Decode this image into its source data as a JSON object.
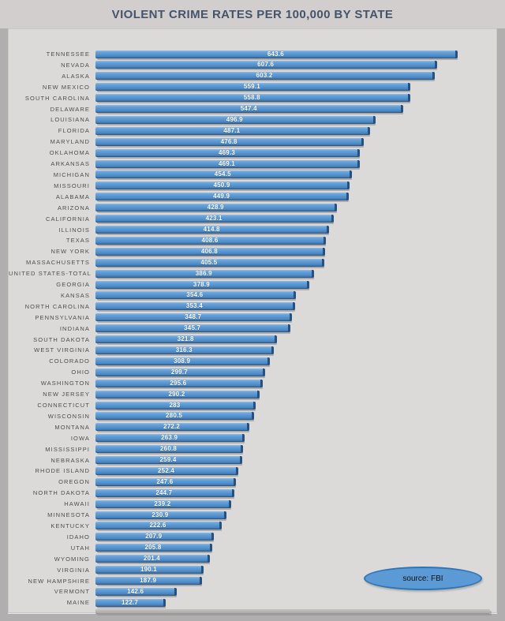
{
  "title": "VIOLENT CRIME RATES PER 100,000 BY STATE",
  "source_label": "source: FBI",
  "colors": {
    "page_background": "#b0aeae",
    "title_band": "#d1cecd",
    "panel_background": "#dcdad9",
    "bar_fill": "#5b9ad5",
    "bar_edge_dark": "#27527e",
    "badge_border": "#2e75b6",
    "title_text": "#44546a",
    "label_text": "#4d4d4d",
    "value_text": "#ffffff"
  },
  "chart_data": {
    "type": "bar",
    "orientation": "horizontal",
    "title": "VIOLENT CRIME RATES PER 100,000 BY STATE",
    "xlabel": "",
    "ylabel": "",
    "xlim": [
      0,
      713
    ],
    "grid": false,
    "legend": false,
    "sort": "descending",
    "value_labels": "centered-on-bar",
    "source": "source: FBI",
    "categories": [
      "TENNESSEE",
      "NEVADA",
      "ALASKA",
      "NEW MEXICO",
      "SOUTH CAROLINA",
      "DELAWARE",
      "LOUISIANA",
      "FLORIDA",
      "MARYLAND",
      "OKLAHOMA",
      "ARKANSAS",
      "MICHIGAN",
      "MISSOURI",
      "ALABAMA",
      "ARIZONA",
      "CALIFORNIA",
      "ILLINOIS",
      "TEXAS",
      "NEW YORK",
      "MASSACHUSETTS",
      "UNITED STATES-TOTAL",
      "GEORGIA",
      "KANSAS",
      "NORTH CAROLINA",
      "PENNSYLVANIA",
      "INDIANA",
      "SOUTH DAKOTA",
      "WEST VIRGINIA",
      "COLORADO",
      "OHIO",
      "WASHINGTON",
      "NEW JERSEY",
      "CONNECTICUT",
      "WISCONSIN",
      "MONTANA",
      "IOWA",
      "MISSISSIPPI",
      "NEBRASKA",
      "RHODE ISLAND",
      "OREGON",
      "NORTH DAKOTA",
      "HAWAII",
      "MINNESOTA",
      "KENTUCKY",
      "IDAHO",
      "UTAH",
      "WYOMING",
      "VIRGINIA",
      "NEW HAMPSHIRE",
      "VERMONT",
      "MAINE"
    ],
    "values": [
      643.6,
      607.6,
      603.2,
      559.1,
      558.8,
      547.4,
      496.9,
      487.1,
      476.8,
      469.3,
      469.1,
      454.5,
      450.9,
      449.9,
      428.9,
      423.1,
      414.8,
      408.6,
      406.8,
      405.5,
      386.9,
      378.9,
      354.6,
      353.4,
      348.7,
      345.7,
      321.8,
      316.3,
      308.9,
      299.7,
      295.6,
      290.2,
      283,
      280.5,
      272.2,
      263.9,
      260.8,
      259.4,
      252.4,
      247.6,
      244.7,
      239.2,
      230.9,
      222.6,
      207.9,
      205.8,
      201.4,
      190.1,
      187.9,
      142.6,
      122.7
    ]
  }
}
